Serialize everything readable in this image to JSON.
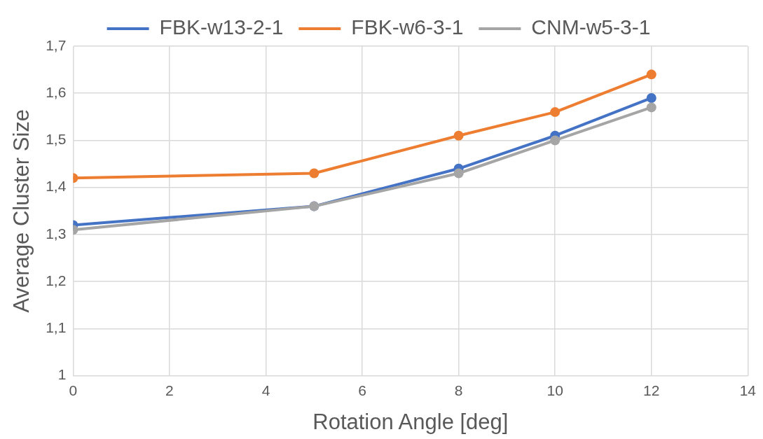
{
  "chart_data": {
    "type": "line",
    "xlabel": "Rotation Angle [deg]",
    "ylabel": "Average Cluster Size",
    "x": [
      0,
      5,
      8,
      10,
      12
    ],
    "series": [
      {
        "name": "FBK-w13-2-1",
        "color": "#4472c4",
        "values": [
          1.32,
          1.36,
          1.44,
          1.51,
          1.59
        ]
      },
      {
        "name": "FBK-w6-3-1",
        "color": "#ed7d31",
        "values": [
          1.42,
          1.43,
          1.51,
          1.56,
          1.64
        ]
      },
      {
        "name": "CNM-w5-3-1",
        "color": "#a5a5a5",
        "values": [
          1.31,
          1.36,
          1.43,
          1.5,
          1.57
        ]
      }
    ],
    "xlim": [
      0,
      14
    ],
    "xticks": [
      0,
      2,
      4,
      6,
      8,
      10,
      12,
      14
    ],
    "ylim": [
      1,
      1.7
    ],
    "yticks": [
      {
        "value": 1,
        "label": "1"
      },
      {
        "value": 1.1,
        "label": "1,1"
      },
      {
        "value": 1.2,
        "label": "1,2"
      },
      {
        "value": 1.3,
        "label": "1,3"
      },
      {
        "value": 1.4,
        "label": "1,4"
      },
      {
        "value": 1.5,
        "label": "1,5"
      },
      {
        "value": 1.6,
        "label": "1,6"
      },
      {
        "value": 1.7,
        "label": "1,7"
      }
    ],
    "grid": true,
    "legend": "top",
    "marker": "circle",
    "line_style": "solid"
  }
}
